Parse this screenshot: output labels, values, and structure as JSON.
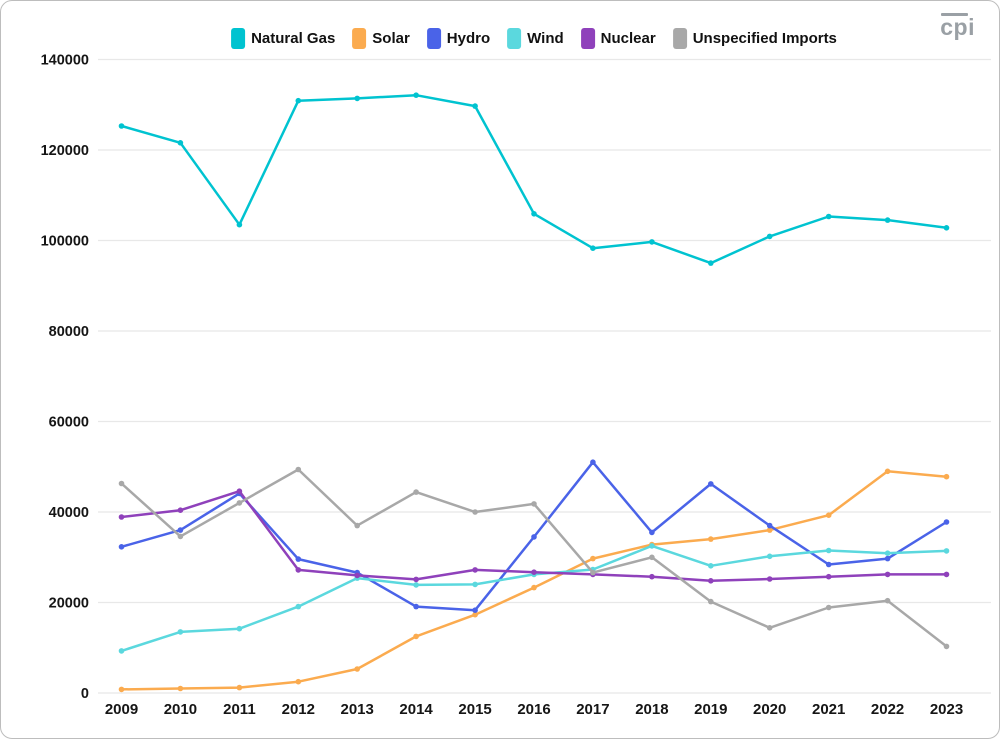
{
  "branding": {
    "logo_text": "cpi"
  },
  "chart_data": {
    "type": "line",
    "title": "",
    "xlabel": "",
    "ylabel": "",
    "legend_position": "top-center",
    "grid": "horizontal-light",
    "ylim": [
      0,
      140000
    ],
    "y_ticks": [
      0,
      20000,
      40000,
      60000,
      80000,
      100000,
      120000,
      140000
    ],
    "x": [
      "2009",
      "2010",
      "2011",
      "2012",
      "2013",
      "2014",
      "2015",
      "2016",
      "2017",
      "2018",
      "2019",
      "2020",
      "2021",
      "2022",
      "2023"
    ],
    "series": [
      {
        "name": "Natural Gas",
        "color": "#00c3d0",
        "values": [
          125300,
          121600,
          103500,
          130900,
          131400,
          132100,
          129700,
          105900,
          98300,
          99700,
          95000,
          100900,
          105300,
          104500,
          102800
        ]
      },
      {
        "name": "Solar",
        "color": "#fbab4f",
        "values": [
          800,
          1000,
          1200,
          2500,
          5300,
          12500,
          17300,
          23300,
          29700,
          32800,
          34000,
          36000,
          39300,
          49000,
          47800
        ]
      },
      {
        "name": "Hydro",
        "color": "#4a63e8",
        "values": [
          32300,
          36000,
          44100,
          29600,
          26600,
          19100,
          18300,
          34500,
          51000,
          35500,
          46200,
          37000,
          28400,
          29700,
          37800
        ]
      },
      {
        "name": "Wind",
        "color": "#5bd8de",
        "values": [
          9300,
          13500,
          14200,
          19100,
          25400,
          23900,
          24000,
          26200,
          27300,
          32500,
          28100,
          30200,
          31500,
          30900,
          31400
        ]
      },
      {
        "name": "Nuclear",
        "color": "#8f41bb",
        "values": [
          38900,
          40400,
          44600,
          27200,
          26000,
          25100,
          27200,
          26700,
          26200,
          25700,
          24800,
          25200,
          25700,
          26200,
          26200
        ]
      },
      {
        "name": "Unspecified Imports",
        "color": "#a8a8a8",
        "values": [
          46300,
          34600,
          42000,
          49400,
          37000,
          44400,
          40000,
          41800,
          26600,
          30000,
          20200,
          14400,
          18900,
          20400,
          10300
        ]
      }
    ]
  }
}
